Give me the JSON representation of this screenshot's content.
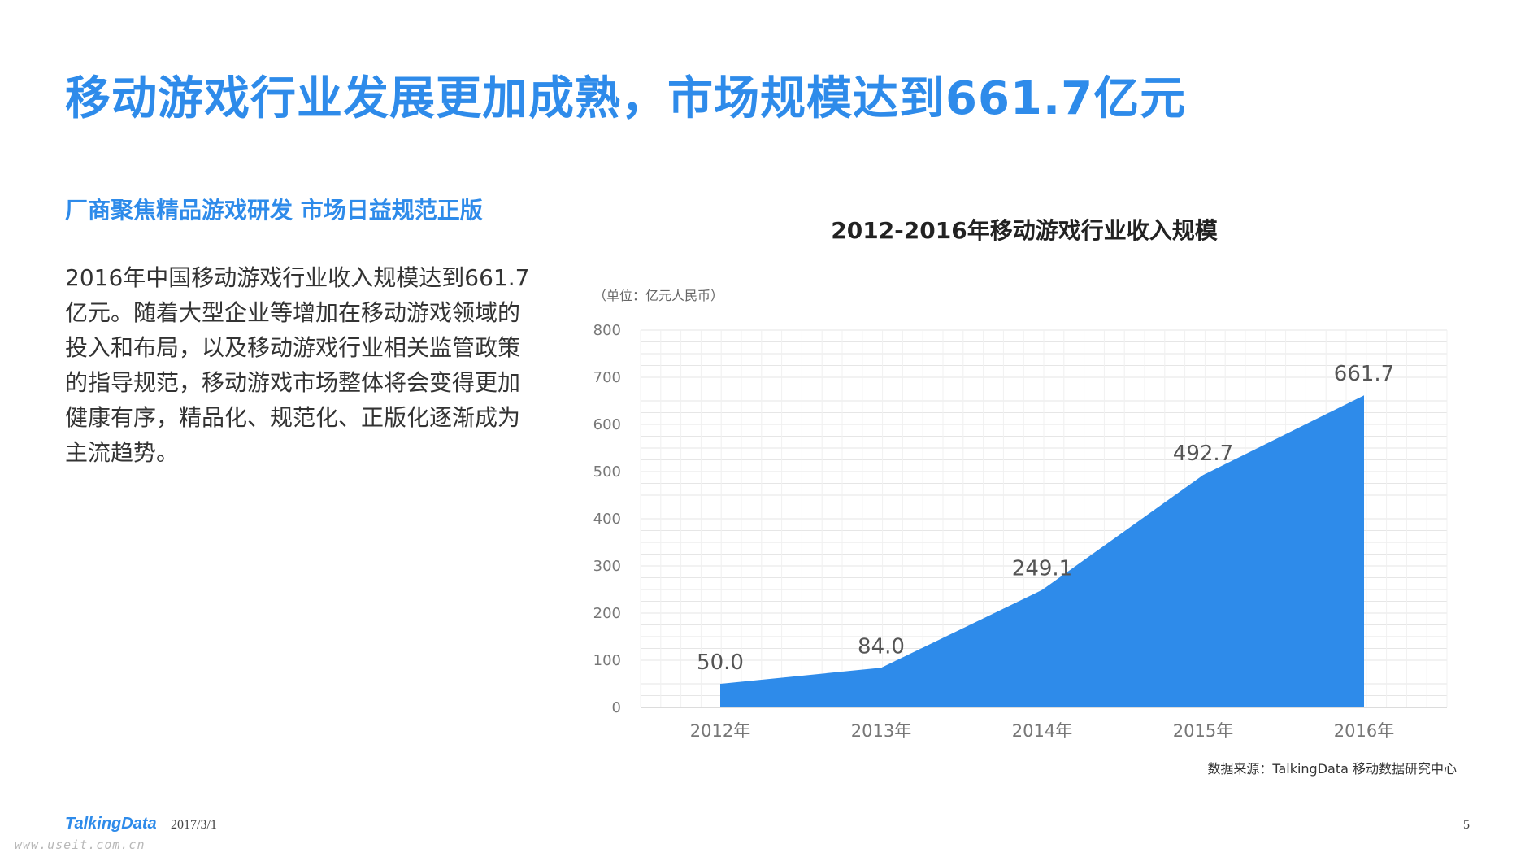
{
  "page": {
    "title": "移动游戏行业发展更加成熟，市场规模达到661.7亿元",
    "subtitle": "厂商聚焦精品游戏研发 市场日益规范正版",
    "paragraph": "2016年中国移动游戏行业收入规模达到661.7亿元。随着大型企业等增加在移动游戏领域的投入和布局，以及移动游戏行业相关监管政策的指导规范，移动游戏市场整体将会变得更加健康有序，精品化、规范化、正版化逐渐成为主流趋势。",
    "source": "数据来源：TalkingData 移动数据研究中心",
    "footer": {
      "logo": "TalkingData",
      "date": "2017/3/1",
      "page_number": "5",
      "watermark": "www.useit.com.cn"
    }
  },
  "colors": {
    "accent": "#2E8BEA",
    "area_fill": "#2E8BEA",
    "grid": "#e6e6e6",
    "axis_text": "#777777",
    "label_text": "#555555"
  },
  "chart_data": {
    "type": "area",
    "title": "2012-2016年移动游戏行业收入规模",
    "unit_label": "（单位：亿元人民币）",
    "categories": [
      "2012年",
      "2013年",
      "2014年",
      "2015年",
      "2016年"
    ],
    "values": [
      50.0,
      84.0,
      249.1,
      492.7,
      661.7
    ],
    "data_labels": [
      "50.0",
      "84.0",
      "249.1",
      "492.7",
      "661.7"
    ],
    "y_ticks": [
      "0",
      "100",
      "200",
      "300",
      "400",
      "500",
      "600",
      "700",
      "800"
    ],
    "ylim": [
      0,
      800
    ],
    "grid": true,
    "legend": "none"
  }
}
